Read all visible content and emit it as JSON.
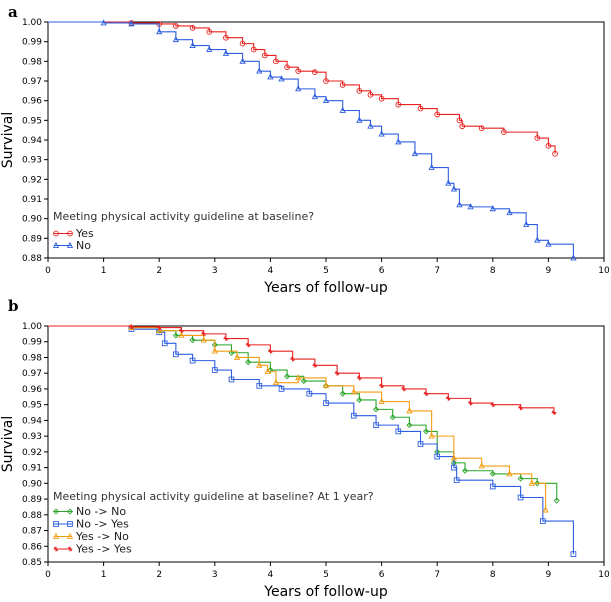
{
  "chart_data": [
    {
      "type": "line",
      "panel_label": "a",
      "xlabel": "Years of follow-up",
      "ylabel": "Survival",
      "xlim": [
        0,
        10
      ],
      "ylim": [
        0.88,
        1.0
      ],
      "x_ticks": [
        "0",
        "1",
        "2",
        "3",
        "4",
        "5",
        "6",
        "7",
        "8",
        "9",
        "10"
      ],
      "y_ticks": [
        "0.88",
        "0.89",
        "0.90",
        "0.91",
        "0.92",
        "0.93",
        "0.94",
        "0.95",
        "0.96",
        "0.97",
        "0.98",
        "0.99",
        "1.00"
      ],
      "legend_title": "Meeting physical activity guideline at baseline?",
      "legend_position": "bottom-left",
      "grid": false,
      "series": [
        {
          "name": "Yes",
          "color": "#e8201f",
          "marker": "circle",
          "x": [
            0,
            1.5,
            2.0,
            2.3,
            2.6,
            2.9,
            3.2,
            3.5,
            3.7,
            3.9,
            4.1,
            4.3,
            4.5,
            4.8,
            5.0,
            5.3,
            5.6,
            5.8,
            6.0,
            6.3,
            6.7,
            7.0,
            7.4,
            7.45,
            7.8,
            8.2,
            8.8,
            9.0,
            9.12
          ],
          "y": [
            1.0,
            0.9995,
            0.999,
            0.998,
            0.997,
            0.995,
            0.992,
            0.989,
            0.986,
            0.983,
            0.98,
            0.977,
            0.975,
            0.9745,
            0.97,
            0.968,
            0.965,
            0.963,
            0.961,
            0.958,
            0.956,
            0.953,
            0.95,
            0.947,
            0.946,
            0.944,
            0.941,
            0.937,
            0.933
          ]
        },
        {
          "name": "No",
          "color": "#2f5fe0",
          "marker": "triangle",
          "x": [
            0,
            1.0,
            1.5,
            2.0,
            2.3,
            2.6,
            2.9,
            3.2,
            3.5,
            3.8,
            4.0,
            4.2,
            4.5,
            4.8,
            5.0,
            5.3,
            5.6,
            5.8,
            6.0,
            6.3,
            6.6,
            6.9,
            7.2,
            7.3,
            7.4,
            7.6,
            8.0,
            8.3,
            8.6,
            8.8,
            9.0,
            9.45
          ],
          "y": [
            1.0,
            0.9995,
            0.999,
            0.995,
            0.991,
            0.988,
            0.986,
            0.984,
            0.98,
            0.975,
            0.972,
            0.971,
            0.966,
            0.962,
            0.96,
            0.955,
            0.95,
            0.947,
            0.943,
            0.939,
            0.933,
            0.926,
            0.918,
            0.915,
            0.907,
            0.906,
            0.905,
            0.903,
            0.897,
            0.889,
            0.887,
            0.88
          ]
        }
      ]
    },
    {
      "type": "line",
      "panel_label": "b",
      "xlabel": "Years of follow-up",
      "ylabel": "Survival",
      "xlim": [
        0,
        10
      ],
      "ylim": [
        0.85,
        1.0
      ],
      "x_ticks": [
        "0",
        "1",
        "2",
        "3",
        "4",
        "5",
        "6",
        "7",
        "8",
        "9",
        "10"
      ],
      "y_ticks": [
        "0.85",
        "0.86",
        "0.87",
        "0.88",
        "0.89",
        "0.90",
        "0.91",
        "0.92",
        "0.93",
        "0.94",
        "0.95",
        "0.96",
        "0.97",
        "0.98",
        "0.99",
        "1.00"
      ],
      "legend_title": "Meeting physical activity guideline at baseline? At 1 year?",
      "legend_position": "bottom-left",
      "grid": false,
      "series": [
        {
          "name": "No -> No",
          "color": "#2aa52a",
          "marker": "diamond",
          "x": [
            0,
            1.5,
            2.0,
            2.3,
            2.6,
            3.0,
            3.3,
            3.6,
            4.0,
            4.3,
            4.6,
            5.0,
            5.3,
            5.6,
            5.9,
            6.2,
            6.5,
            6.8,
            7.0,
            7.3,
            7.5,
            8.0,
            8.5,
            8.8,
            9.15
          ],
          "y": [
            1.0,
            0.999,
            0.997,
            0.994,
            0.991,
            0.988,
            0.983,
            0.977,
            0.972,
            0.968,
            0.965,
            0.962,
            0.957,
            0.953,
            0.947,
            0.942,
            0.937,
            0.933,
            0.92,
            0.913,
            0.908,
            0.906,
            0.903,
            0.9,
            0.889
          ]
        },
        {
          "name": "No -> Yes",
          "color": "#2f5fe0",
          "marker": "square",
          "x": [
            0,
            1.5,
            2.0,
            2.1,
            2.3,
            2.6,
            3.0,
            3.3,
            3.8,
            4.2,
            4.7,
            5.0,
            5.5,
            5.9,
            6.3,
            6.7,
            7.0,
            7.3,
            7.35,
            8.0,
            8.5,
            8.9,
            9.45
          ],
          "y": [
            1.0,
            0.998,
            0.996,
            0.989,
            0.982,
            0.978,
            0.972,
            0.966,
            0.962,
            0.96,
            0.957,
            0.951,
            0.943,
            0.937,
            0.933,
            0.925,
            0.917,
            0.91,
            0.902,
            0.898,
            0.891,
            0.876,
            0.855
          ]
        },
        {
          "name": "Yes -> No",
          "color": "#f39c12",
          "marker": "triangle",
          "x": [
            0,
            1.5,
            2.0,
            2.4,
            2.8,
            3.0,
            3.4,
            3.8,
            3.95,
            4.1,
            4.5,
            5.0,
            5.5,
            6.0,
            6.5,
            6.9,
            7.3,
            7.8,
            8.3,
            8.7,
            8.95
          ],
          "y": [
            1.0,
            0.999,
            0.997,
            0.994,
            0.991,
            0.984,
            0.98,
            0.975,
            0.971,
            0.964,
            0.967,
            0.962,
            0.958,
            0.952,
            0.946,
            0.93,
            0.916,
            0.911,
            0.906,
            0.9,
            0.883
          ]
        },
        {
          "name": "Yes -> Yes",
          "color": "#e8201f",
          "marker": "star",
          "x": [
            0,
            1.5,
            2.0,
            2.4,
            2.8,
            3.2,
            3.6,
            4.0,
            4.4,
            4.8,
            5.2,
            5.6,
            6.0,
            6.4,
            6.8,
            7.2,
            7.6,
            8.0,
            8.5,
            9.1
          ],
          "y": [
            1.0,
            0.9995,
            0.999,
            0.997,
            0.995,
            0.992,
            0.988,
            0.984,
            0.979,
            0.975,
            0.97,
            0.967,
            0.962,
            0.96,
            0.957,
            0.954,
            0.951,
            0.95,
            0.948,
            0.945
          ]
        }
      ]
    }
  ]
}
